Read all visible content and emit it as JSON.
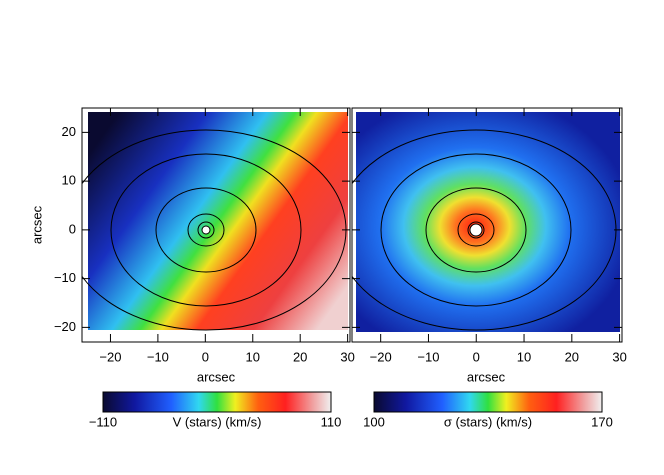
{
  "chart_data": [
    {
      "type": "map",
      "xlabel": "arcsec",
      "ylabel": "arcsec",
      "xlim": [
        -26,
        30.5
      ],
      "ylim": [
        -23,
        25
      ],
      "xticks": [
        {
          "value": -20,
          "label": "−20"
        },
        {
          "value": -10,
          "label": "−10"
        },
        0,
        10,
        20,
        30
      ],
      "yticks": [
        {
          "value": -20,
          "label": "−20"
        },
        {
          "value": -10,
          "label": "−10"
        },
        0,
        10,
        20
      ],
      "colorbar": {
        "label": "V (stars) (km/s)",
        "clim": [
          -110,
          110
        ],
        "cticks": [
          {
            "value": -110,
            "label": "−110"
          },
          110
        ]
      }
    },
    {
      "type": "map",
      "xlabel": "arcsec",
      "xlim": [
        -26,
        30.5
      ],
      "ylim": [
        -23,
        25
      ],
      "xticks": [
        {
          "value": -20,
          "label": "−20"
        },
        {
          "value": -10,
          "label": "−10"
        },
        0,
        10,
        20,
        30
      ],
      "colorbar": {
        "label": "σ (stars) (km/s)",
        "clim": [
          100,
          170
        ],
        "cticks": [
          100,
          170
        ]
      }
    }
  ]
}
